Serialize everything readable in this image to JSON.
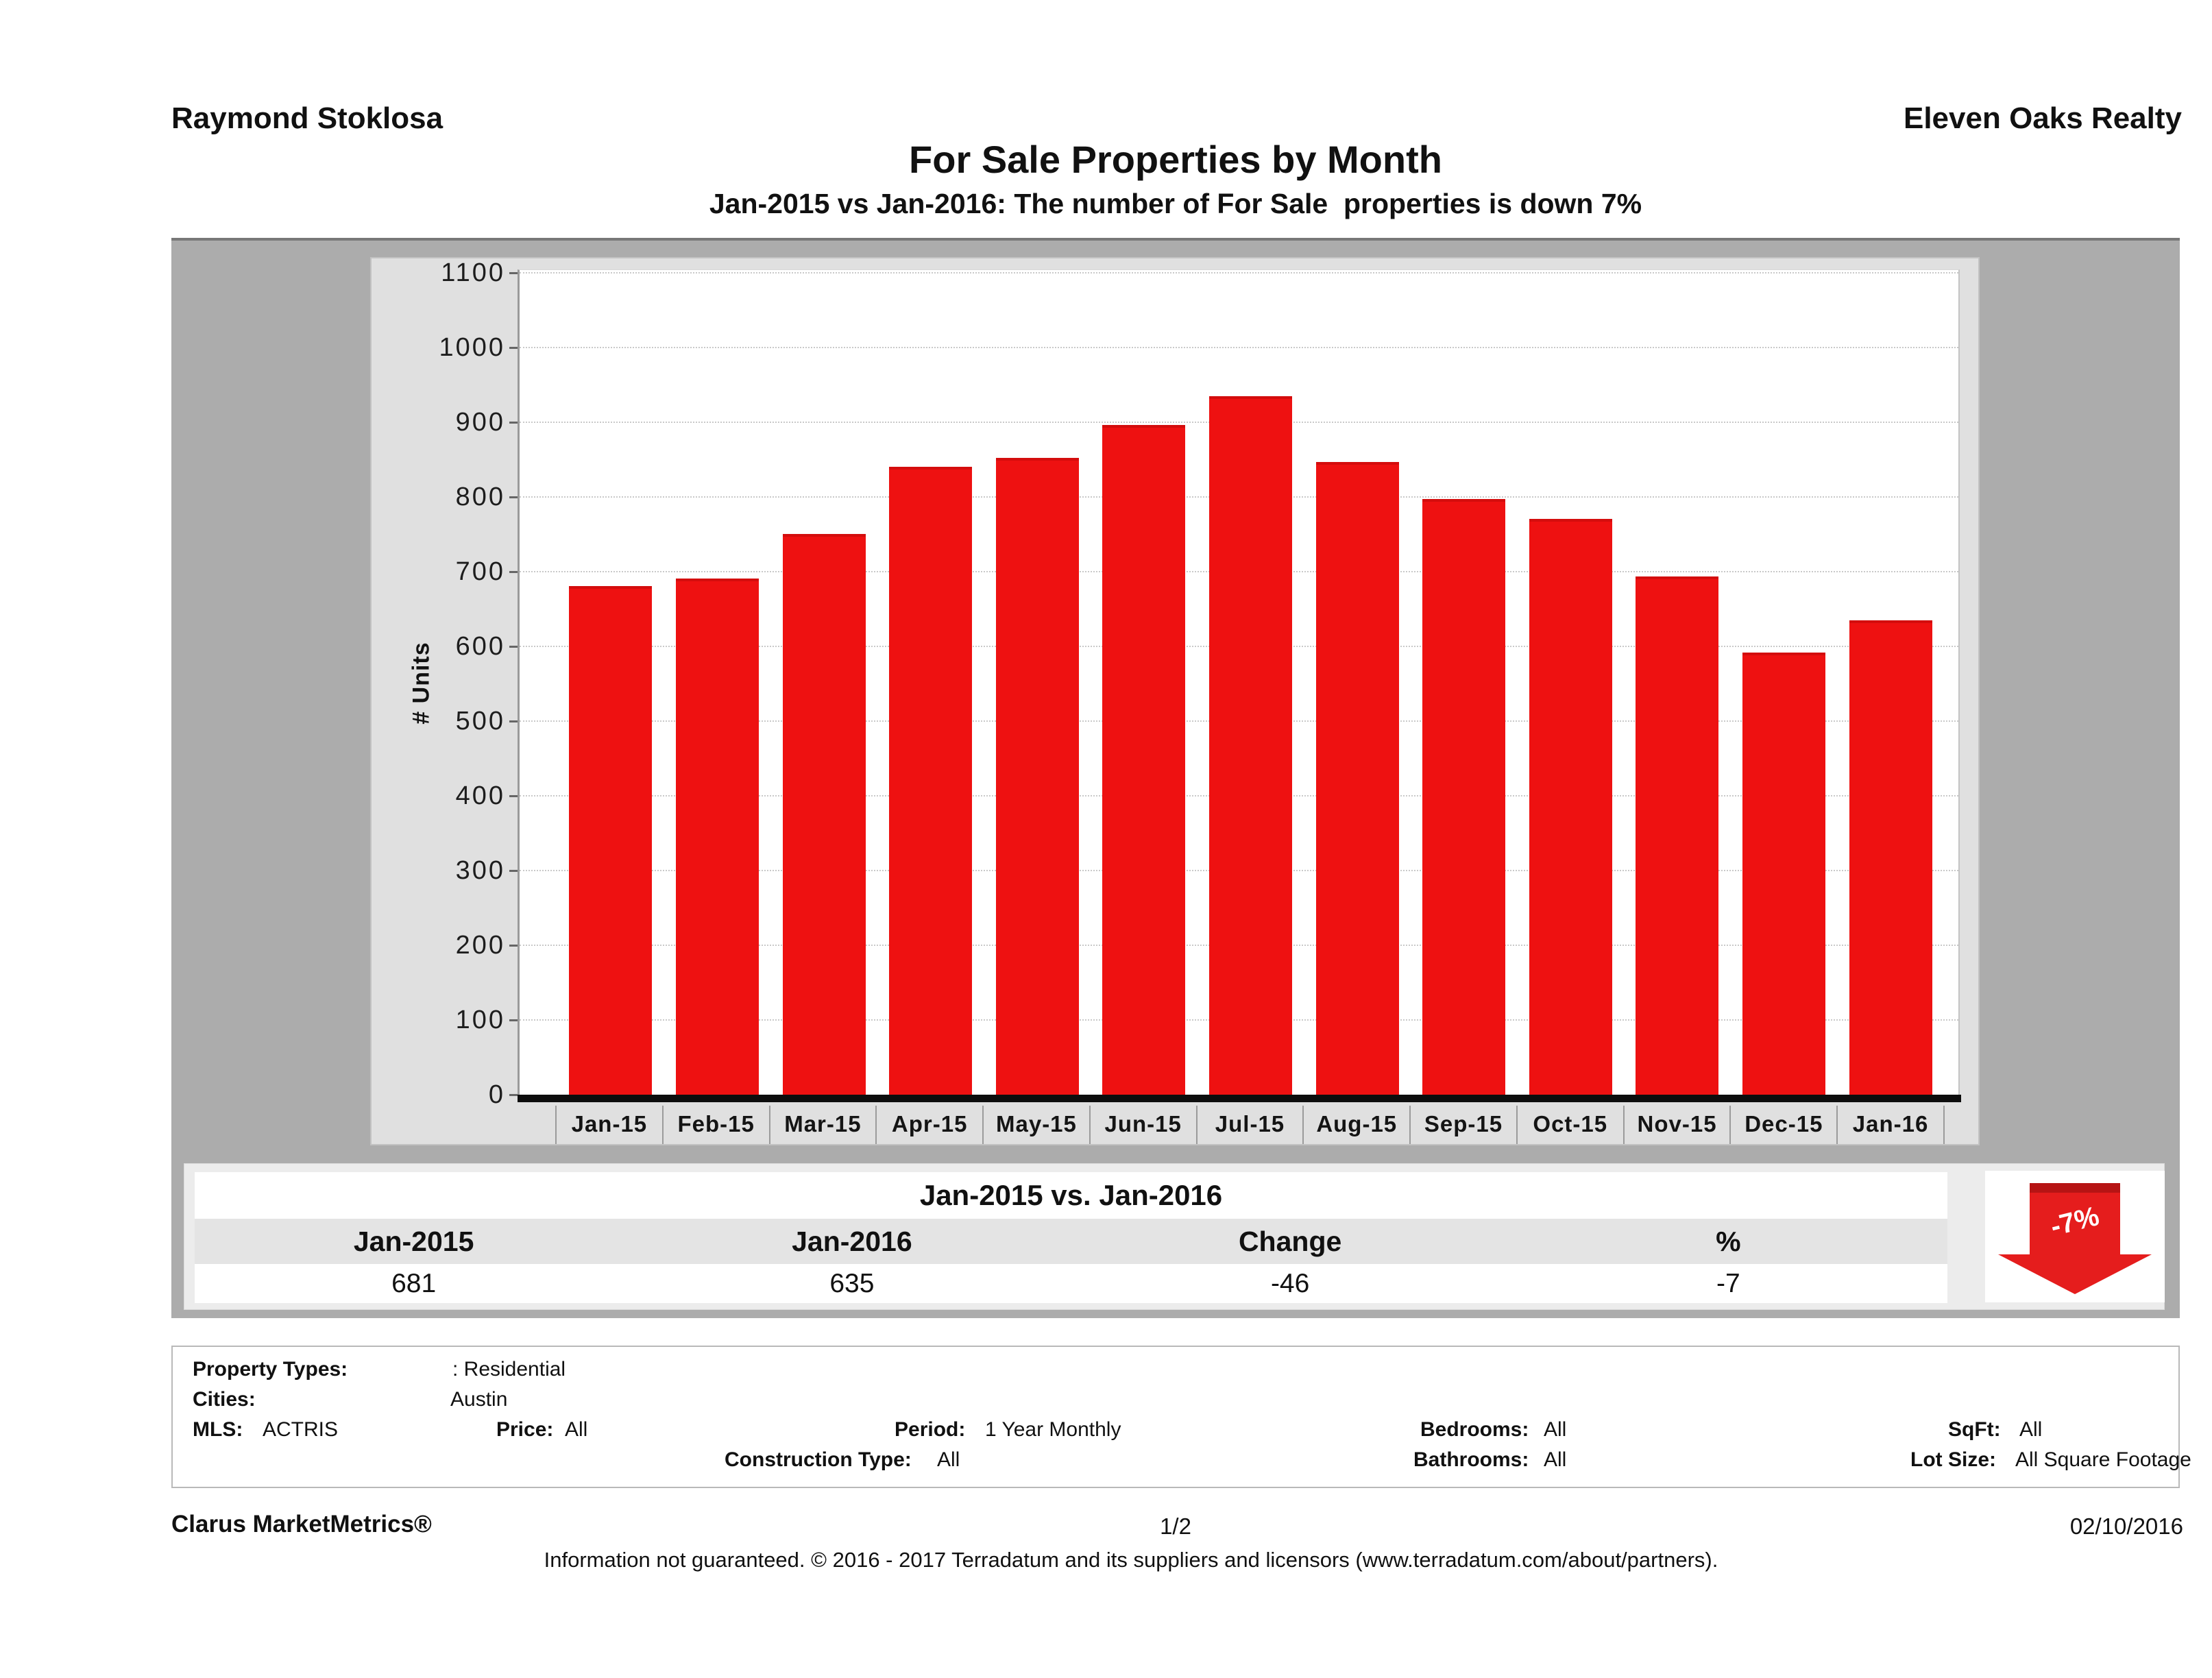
{
  "header": {
    "agent": "Raymond Stoklosa",
    "company": "Eleven Oaks Realty"
  },
  "title": "For Sale Properties by Month",
  "subtitle": "Jan-2015 vs Jan-2016: The number of For Sale  properties is down 7%",
  "chart_data": {
    "type": "bar",
    "title": "For Sale Properties by Month",
    "xlabel": "",
    "ylabel": "# Units",
    "ylim": [
      0,
      1100
    ],
    "ytick_step": 100,
    "grid": "horizontal dotted",
    "legend_position": "none",
    "bar_color": "#ee1111",
    "categories": [
      "Jan-15",
      "Feb-15",
      "Mar-15",
      "Apr-15",
      "May-15",
      "Jun-15",
      "Jul-15",
      "Aug-15",
      "Sep-15",
      "Oct-15",
      "Nov-15",
      "Dec-15",
      "Jan-16"
    ],
    "values": [
      681,
      691,
      750,
      840,
      852,
      896,
      935,
      847,
      797,
      771,
      694,
      592,
      635
    ]
  },
  "summary_table": {
    "title": "Jan-2015 vs. Jan-2016",
    "columns": [
      "Jan-2015",
      "Jan-2016",
      "Change",
      "%"
    ],
    "values": [
      "681",
      "635",
      "-46",
      "-7"
    ],
    "arrow": {
      "label": "-7%",
      "color": "#e51d1d",
      "direction": "down"
    }
  },
  "filters": {
    "property_types": {
      "label": "Property Types:",
      "value": ": Residential"
    },
    "cities": {
      "label": "Cities:",
      "value": "Austin"
    },
    "mls": {
      "label": "MLS:",
      "value": "ACTRIS"
    },
    "price": {
      "label": "Price:",
      "value": "All"
    },
    "period": {
      "label": "Period:",
      "value": "1 Year Monthly"
    },
    "bedrooms": {
      "label": "Bedrooms:",
      "value": "All"
    },
    "sqft": {
      "label": "SqFt:",
      "value": "All"
    },
    "construction_type": {
      "label": "Construction Type:",
      "value": "All"
    },
    "bathrooms": {
      "label": "Bathrooms:",
      "value": "All"
    },
    "lot_size": {
      "label": "Lot Size:",
      "value": "All Square Footage"
    }
  },
  "footer": {
    "brand": "Clarus MarketMetrics®",
    "page": "1/2",
    "date": "02/10/2016",
    "disclaimer": "Information not guaranteed. © 2016 - 2017 Terradatum and its suppliers and licensors (www.terradatum.com/about/partners)."
  }
}
